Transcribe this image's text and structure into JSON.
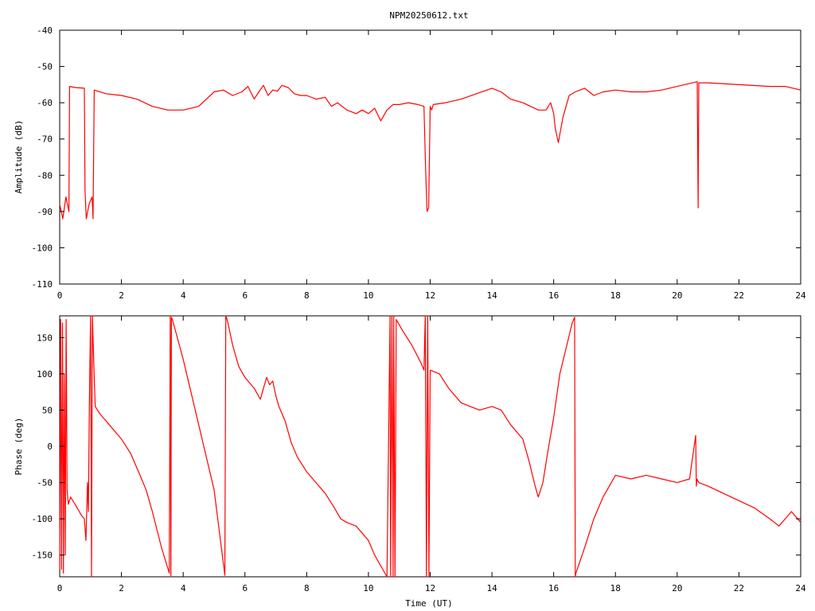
{
  "title": "NPM20250612.txt",
  "chart_data": [
    {
      "type": "line",
      "xlabel": "",
      "ylabel": "Amplitude (dB)",
      "xlim": [
        0,
        24
      ],
      "ylim": [
        -110,
        -40
      ],
      "xticks": [
        0,
        2,
        4,
        6,
        8,
        10,
        12,
        14,
        16,
        18,
        20,
        22,
        24
      ],
      "yticks": [
        -40,
        -50,
        -60,
        -70,
        -80,
        -90,
        -100,
        -110
      ],
      "grid": false,
      "series": [
        {
          "color": "#ff0000",
          "x": [
            0.0,
            0.1,
            0.2,
            0.3,
            0.32,
            0.5,
            0.8,
            0.82,
            0.86,
            0.95,
            1.05,
            1.08,
            1.12,
            1.5,
            2.0,
            2.5,
            3.0,
            3.5,
            4.0,
            4.5,
            5.0,
            5.3,
            5.6,
            5.9,
            6.1,
            6.3,
            6.45,
            6.6,
            6.75,
            6.9,
            7.05,
            7.2,
            7.4,
            7.6,
            7.8,
            8.0,
            8.3,
            8.6,
            8.8,
            9.0,
            9.3,
            9.6,
            9.8,
            10.0,
            10.2,
            10.4,
            10.6,
            10.8,
            11.0,
            11.3,
            11.6,
            11.8,
            11.85,
            11.9,
            11.95,
            12.0,
            12.05,
            12.1,
            12.5,
            13.0,
            13.5,
            14.0,
            14.3,
            14.6,
            15.0,
            15.5,
            15.75,
            15.9,
            16.0,
            16.05,
            16.15,
            16.3,
            16.5,
            16.7,
            17.0,
            17.3,
            17.6,
            18.0,
            18.5,
            19.0,
            19.5,
            20.0,
            20.5,
            20.65,
            20.68,
            20.7,
            21.0,
            22.0,
            23.0,
            23.5,
            24.0
          ],
          "y": [
            -88,
            -92,
            -86,
            -90,
            -55.5,
            -55.8,
            -56,
            -84,
            -92,
            -88,
            -86,
            -92,
            -56.5,
            -57.5,
            -58,
            -59,
            -61,
            -62,
            -62,
            -61,
            -57,
            -56.5,
            -58,
            -57,
            -55.5,
            -59,
            -57,
            -55.2,
            -58,
            -56.5,
            -56.8,
            -55.2,
            -55.8,
            -57.5,
            -58,
            -58,
            -59,
            -58.5,
            -61,
            -60,
            -62,
            -63,
            -62,
            -63,
            -61.5,
            -65,
            -62,
            -60.5,
            -60.5,
            -60,
            -60.5,
            -61,
            -78,
            -90,
            -89,
            -61,
            -62,
            -60.5,
            -60,
            -59,
            -57.5,
            -56,
            -57,
            -59,
            -60,
            -62,
            -62,
            -60,
            -63,
            -67,
            -71,
            -64,
            -58,
            -57,
            -56,
            -58,
            -57,
            -56.5,
            -57,
            -57,
            -56.5,
            -55.5,
            -54.5,
            -54.2,
            -89,
            -54.5,
            -54.5,
            -55,
            -55.5,
            -55.5,
            -56.5
          ]
        }
      ]
    },
    {
      "type": "line",
      "xlabel": "Time (UT)",
      "ylabel": "Phase (deg)",
      "xlim": [
        0,
        24
      ],
      "ylim": [
        -180,
        180
      ],
      "xticks": [
        0,
        2,
        4,
        6,
        8,
        10,
        12,
        14,
        16,
        18,
        20,
        22,
        24
      ],
      "yticks": [
        150,
        100,
        50,
        0,
        -50,
        -100,
        -150
      ],
      "grid": false,
      "series": [
        {
          "color": "#ff0000",
          "x": [
            0.0,
            0.03,
            0.06,
            0.09,
            0.12,
            0.15,
            0.18,
            0.21,
            0.24,
            0.28,
            0.35,
            0.5,
            0.7,
            0.8,
            0.85,
            0.9,
            0.93,
            0.96,
            1.0,
            1.03,
            1.06,
            1.1,
            1.15,
            1.3,
            1.6,
            2.0,
            2.3,
            2.6,
            2.8,
            3.0,
            3.3,
            3.55,
            3.58,
            3.6,
            3.62,
            3.65,
            4.0,
            4.5,
            5.0,
            5.35,
            5.38,
            5.4,
            5.45,
            5.6,
            5.8,
            6.0,
            6.3,
            6.5,
            6.7,
            6.8,
            6.9,
            7.0,
            7.1,
            7.3,
            7.5,
            7.7,
            8.0,
            8.3,
            8.6,
            8.9,
            9.1,
            9.3,
            9.6,
            9.8,
            10.0,
            10.2,
            10.4,
            10.6,
            10.7,
            10.72,
            10.76,
            10.8,
            10.82,
            10.86,
            10.9,
            11.1,
            11.4,
            11.7,
            11.8,
            11.84,
            11.88,
            11.92,
            11.96,
            12.0,
            12.3,
            12.6,
            13.0,
            13.3,
            13.6,
            14.0,
            14.3,
            14.6,
            15.0,
            15.2,
            15.4,
            15.5,
            15.65,
            15.8,
            16.0,
            16.2,
            16.4,
            16.6,
            16.68,
            16.7,
            16.72,
            17.0,
            17.3,
            17.6,
            18.0,
            18.5,
            19.0,
            19.5,
            20.0,
            20.4,
            20.6,
            20.62,
            20.64,
            20.7,
            21.0,
            21.5,
            22.0,
            22.5,
            23.0,
            23.3,
            23.5,
            23.7,
            24.0
          ],
          "y": [
            -170,
            175,
            -170,
            170,
            -175,
            100,
            -150,
            175,
            -60,
            -80,
            -70,
            -80,
            -95,
            -100,
            -130,
            -50,
            -90,
            50,
            180,
            -180,
            180,
            120,
            55,
            45,
            30,
            10,
            -10,
            -40,
            -60,
            -90,
            -140,
            -175,
            180,
            -180,
            178,
            175,
            120,
            30,
            -60,
            -178,
            180,
            178,
            170,
            140,
            110,
            95,
            80,
            65,
            95,
            85,
            90,
            70,
            55,
            35,
            5,
            -15,
            -35,
            -50,
            -65,
            -85,
            -100,
            -105,
            -110,
            -120,
            -130,
            -150,
            -165,
            -180,
            180,
            -180,
            180,
            -180,
            180,
            -180,
            175,
            160,
            140,
            115,
            105,
            180,
            -180,
            180,
            -180,
            105,
            100,
            80,
            60,
            55,
            50,
            55,
            50,
            30,
            10,
            -20,
            -55,
            -70,
            -50,
            -10,
            40,
            100,
            135,
            170,
            178,
            -180,
            -175,
            -140,
            -100,
            -70,
            -40,
            -45,
            -40,
            -45,
            -50,
            -45,
            15,
            -55,
            -45,
            -50,
            -55,
            -65,
            -75,
            -85,
            -100,
            -110,
            -100,
            -90,
            -105
          ]
        }
      ]
    }
  ]
}
